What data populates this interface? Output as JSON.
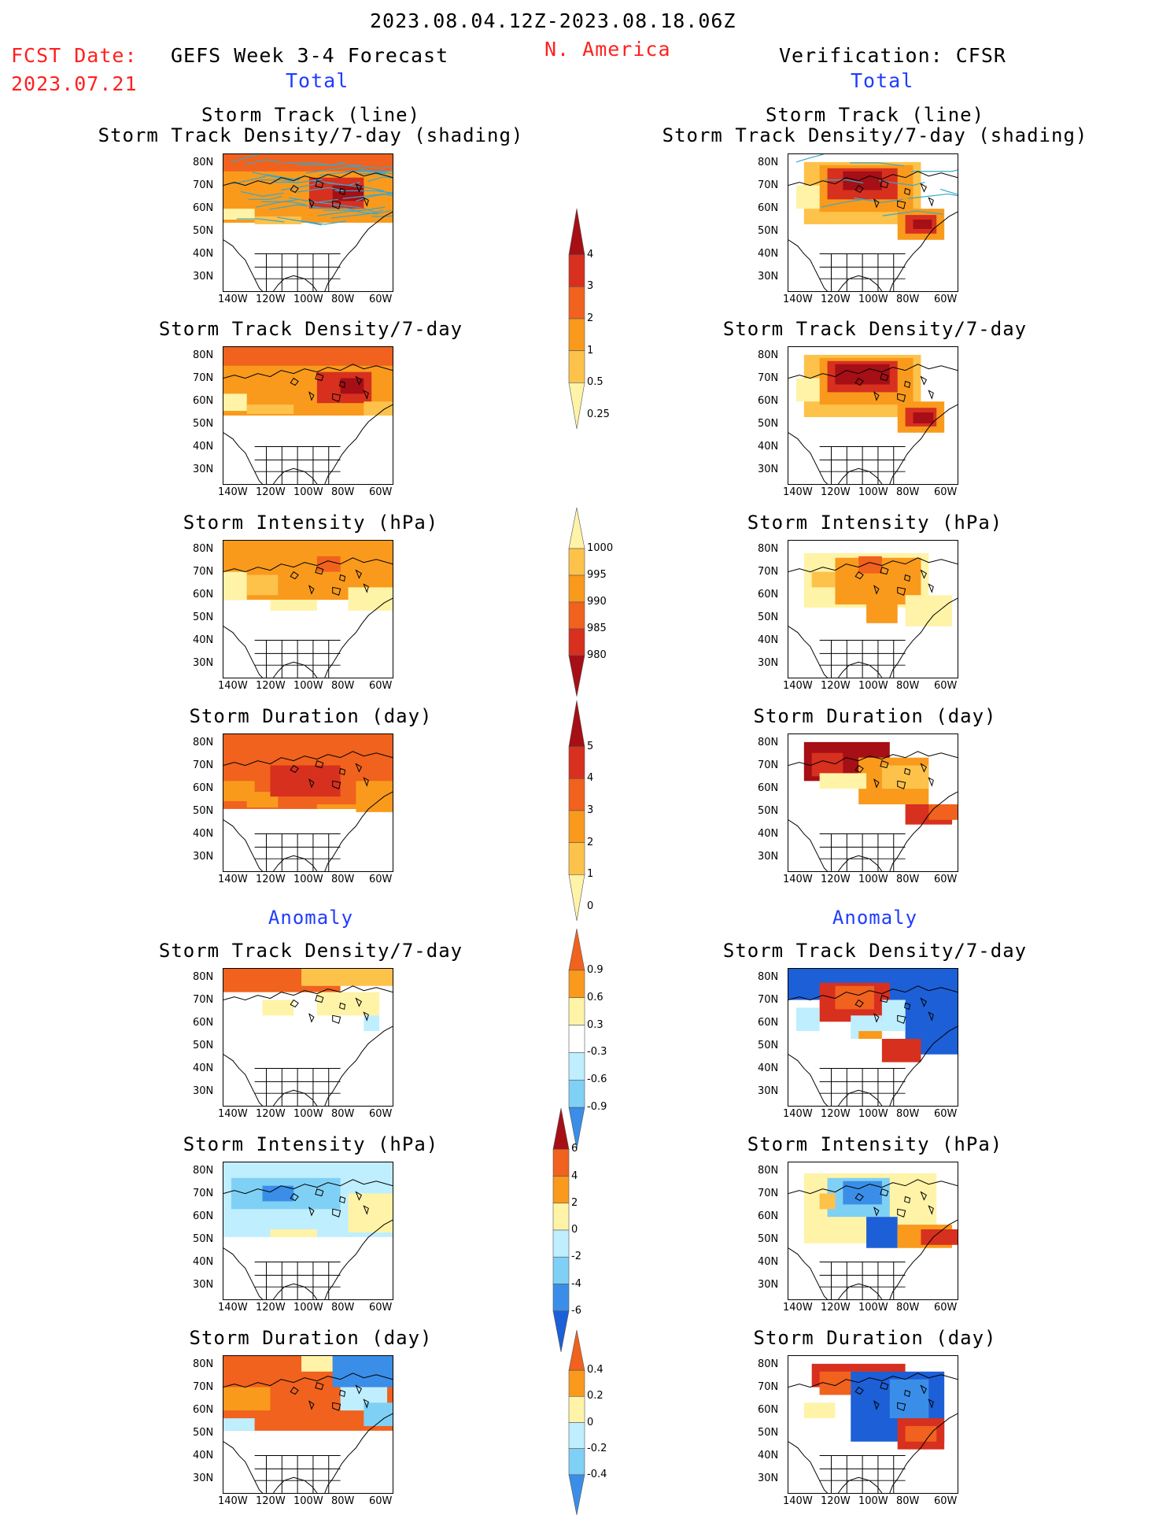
{
  "header": {
    "date_range": "2023.08.04.12Z-2023.08.18.06Z",
    "region": "N. America",
    "fcst_date_label": "FCST Date:",
    "fcst_date_value": "2023.07.21",
    "forecast_title": "GEFS Week 3-4 Forecast",
    "verification_title": "Verification: CFSR",
    "left_total": "Total",
    "right_total": "Total",
    "left_anomaly": "Anomaly",
    "right_anomaly": "Anomaly"
  },
  "panel_titles": {
    "track_line": "Storm Track (line)",
    "track_shading": "Storm Track Density/7-day (shading)",
    "density": "Storm Track Density/7-day",
    "intensity": "Storm Intensity (hPa)",
    "duration": "Storm Duration (day)"
  },
  "axes": {
    "lat_ticks": [
      "80N",
      "70N",
      "60N",
      "50N",
      "40N",
      "30N"
    ],
    "lon_ticks": [
      "140W",
      "120W",
      "100W",
      "80W",
      "60W"
    ]
  },
  "colorbars": {
    "density_total": [
      "4",
      "3",
      "2",
      "1",
      "0.5",
      "0.25"
    ],
    "intensity_total": [
      "1000",
      "995",
      "990",
      "985",
      "980"
    ],
    "duration_total": [
      "5",
      "4",
      "3",
      "2",
      "1",
      "0"
    ],
    "density_anom": [
      "0.9",
      "0.6",
      "0.3",
      "-0.3",
      "-0.6",
      "-0.9"
    ],
    "intensity_anom": [
      "6",
      "4",
      "2",
      "0",
      "-2",
      "-4",
      "-6"
    ],
    "duration_anom": [
      "0.4",
      "0.2",
      "0",
      "-0.2",
      "-0.4"
    ]
  },
  "colors": {
    "dark_red": "#a50f15",
    "red": "#d7301f",
    "orange_red": "#f0621e",
    "orange": "#f99a1c",
    "light_orange": "#fdc24a",
    "pale_yellow": "#fff3a8",
    "light_blue": "#bfeeff",
    "sky_blue": "#7fd0f5",
    "mid_blue": "#3a8ee8",
    "deep_blue": "#1d5fd6",
    "track_line": "#3aa7c9"
  }
}
